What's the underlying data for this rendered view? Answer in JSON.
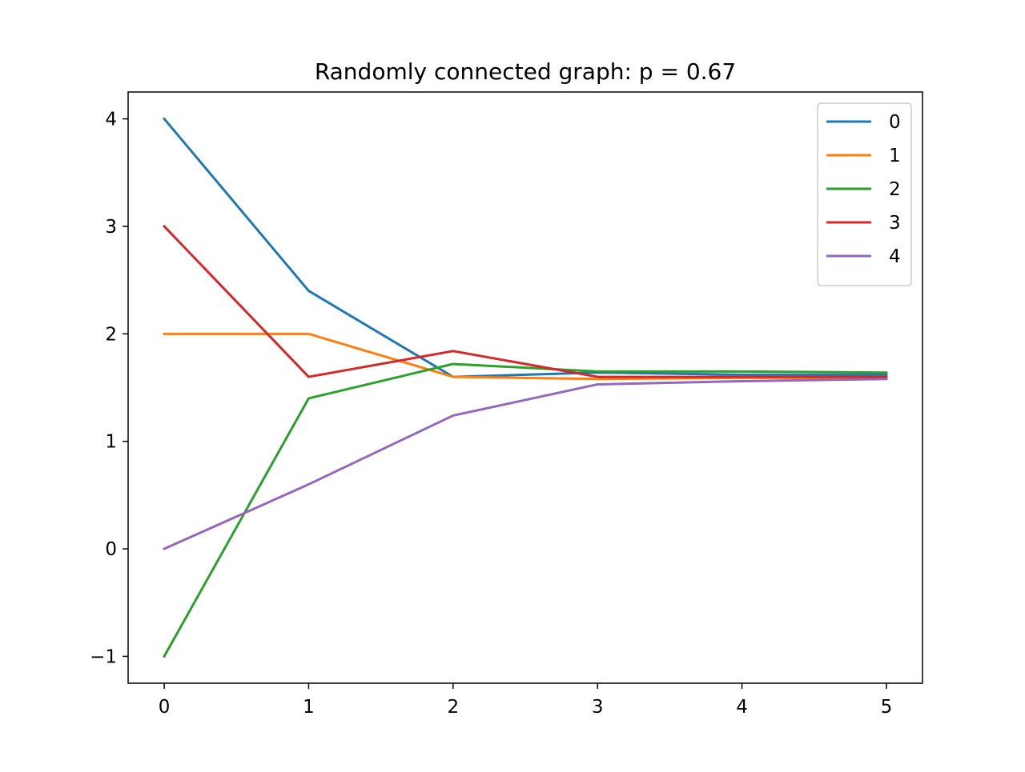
{
  "chart_data": {
    "type": "line",
    "title": "Randomly connected graph: p = 0.67",
    "xlabel": "",
    "ylabel": "",
    "x": [
      0,
      1,
      2,
      3,
      4,
      5
    ],
    "xlim": [
      -0.25,
      5.25
    ],
    "ylim": [
      -1.25,
      4.25
    ],
    "xticks": [
      0,
      1,
      2,
      3,
      4,
      5
    ],
    "yticks": [
      -1,
      0,
      1,
      2,
      3,
      4
    ],
    "xtick_labels": [
      "0",
      "1",
      "2",
      "3",
      "4",
      "5"
    ],
    "ytick_labels": [
      "−1",
      "0",
      "1",
      "2",
      "3",
      "4"
    ],
    "grid": false,
    "legend_position": "top-right",
    "series": [
      {
        "name": "0",
        "color": "#1f77b4",
        "values": [
          4.0,
          2.4,
          1.6,
          1.64,
          1.62,
          1.62
        ]
      },
      {
        "name": "1",
        "color": "#ff7f0e",
        "values": [
          2.0,
          2.0,
          1.6,
          1.58,
          1.59,
          1.59
        ]
      },
      {
        "name": "2",
        "color": "#2ca02c",
        "values": [
          -1.0,
          1.4,
          1.72,
          1.65,
          1.65,
          1.64
        ]
      },
      {
        "name": "3",
        "color": "#d62728",
        "values": [
          3.0,
          1.6,
          1.84,
          1.6,
          1.6,
          1.6
        ]
      },
      {
        "name": "4",
        "color": "#9467bd",
        "values": [
          0.0,
          0.6,
          1.24,
          1.53,
          1.56,
          1.58
        ]
      }
    ]
  }
}
